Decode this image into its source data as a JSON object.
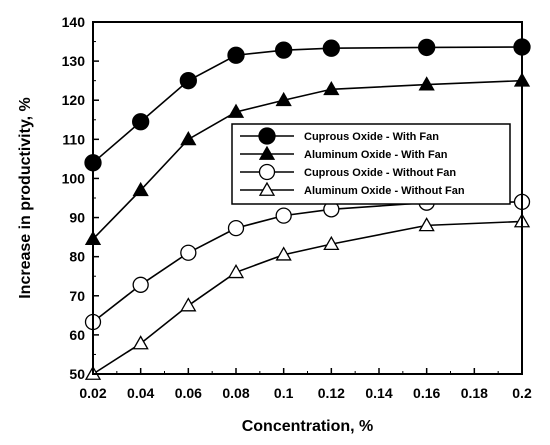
{
  "chart_data": {
    "type": "line",
    "xlabel": "Concentration, %",
    "ylabel": "Increase in productivity, %",
    "xlim": [
      0.02,
      0.2
    ],
    "ylim": [
      50,
      140
    ],
    "x_ticks": [
      "0.02",
      "0.04",
      "0.06",
      "0.08",
      "0.1",
      "0.12",
      "0.14",
      "0.16",
      "0.18",
      "0.2"
    ],
    "y_ticks": [
      "50",
      "60",
      "70",
      "80",
      "90",
      "100",
      "110",
      "120",
      "130",
      "140"
    ],
    "grid": false,
    "legend_position": "center-right",
    "series": [
      {
        "name": "Cuprous Oxide - With Fan",
        "marker": "filled-circle",
        "x": [
          0.02,
          0.04,
          0.06,
          0.08,
          0.1,
          0.12,
          0.16,
          0.2
        ],
        "values": [
          104,
          114.5,
          125,
          131.5,
          132.8,
          133.3,
          133.5,
          133.6
        ]
      },
      {
        "name": "Aluminum Oxide - With Fan",
        "marker": "filled-triangle",
        "x": [
          0.02,
          0.04,
          0.06,
          0.08,
          0.1,
          0.12,
          0.16,
          0.2
        ],
        "values": [
          84.5,
          97,
          110,
          117,
          120,
          122.8,
          124,
          125
        ]
      },
      {
        "name": "Cuprous Oxide - Without Fan",
        "marker": "open-circle",
        "x": [
          0.02,
          0.04,
          0.06,
          0.08,
          0.1,
          0.12,
          0.16,
          0.2
        ],
        "values": [
          63.3,
          72.8,
          81,
          87.3,
          90.5,
          92.1,
          93.8,
          94
        ]
      },
      {
        "name": "Aluminum Oxide - Without Fan",
        "marker": "open-triangle",
        "x": [
          0.02,
          0.04,
          0.06,
          0.08,
          0.1,
          0.12,
          0.16,
          0.2
        ],
        "values": [
          50,
          57.8,
          67.5,
          76,
          80.5,
          83.2,
          88,
          89
        ]
      }
    ]
  }
}
